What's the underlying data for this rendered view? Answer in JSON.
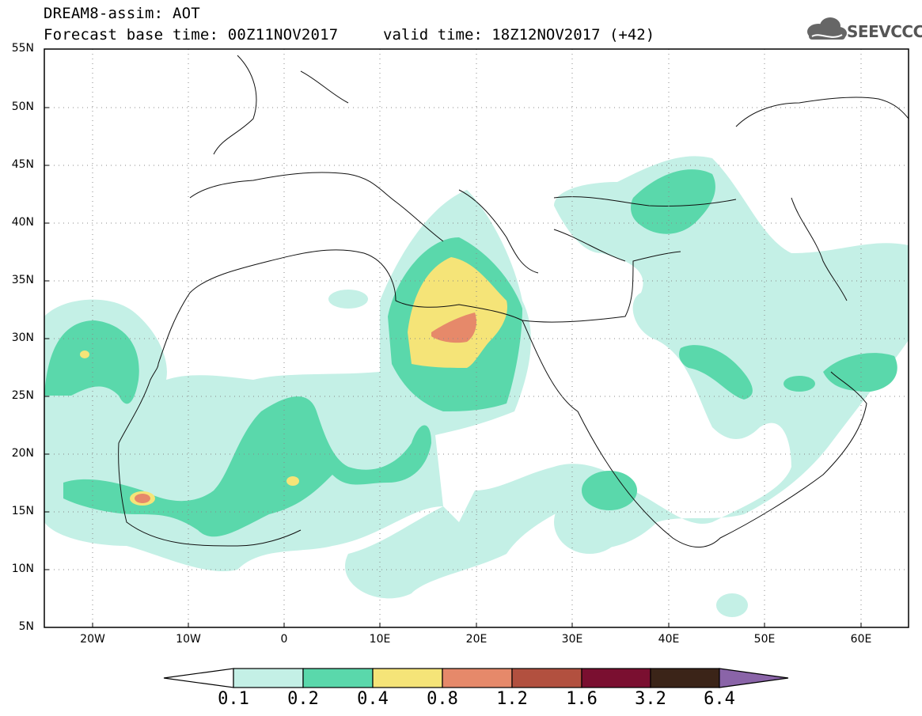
{
  "header": {
    "line1": "DREAM8-assim: AOT",
    "line2": "Forecast base time: 00Z11NOV2017",
    "valid": "valid time: 18Z12NOV2017 (+42)",
    "logo_text": "SEEVCCC",
    "logo_icon": "cloud-icon"
  },
  "map": {
    "lat_labels": [
      "55N",
      "50N",
      "45N",
      "40N",
      "35N",
      "30N",
      "25N",
      "20N",
      "15N",
      "10N",
      "5N"
    ],
    "lon_labels": [
      "20W",
      "10W",
      "0",
      "10E",
      "20E",
      "30E",
      "40E",
      "50E",
      "60E"
    ],
    "lat_range": [
      5,
      55
    ],
    "lon_range": [
      -25,
      65
    ],
    "grid": "dotted"
  },
  "colorbar": {
    "labels": [
      "0.1",
      "0.2",
      "0.4",
      "0.8",
      "1.2",
      "1.6",
      "3.2",
      "6.4"
    ],
    "colors": [
      "#ffffff",
      "#c4f0e6",
      "#5ad8ab",
      "#f5e478",
      "#e6896a",
      "#b2503f",
      "#7a0f30",
      "#3b2418",
      "#8a64a8"
    ]
  },
  "legend_colors": {
    "c1": "#c4f0e6",
    "c2": "#5ad8ab",
    "c3": "#f5e478",
    "c4": "#e6896a"
  }
}
